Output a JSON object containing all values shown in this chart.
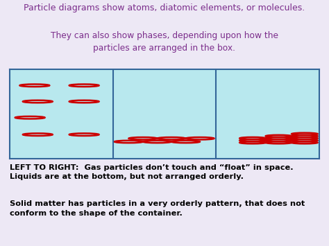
{
  "title_line1": "Particle diagrams show atoms, diatomic elements, or molecules.",
  "title_line2": "They can also show phases, depending upon how the\nparticles are arranged in the box.",
  "title_color": "#7b2d8b",
  "bg_color": "#ede8f5",
  "box_bg_color": "#b8e8ee",
  "box_border_color": "#336699",
  "circle_edge_color": "#cc0000",
  "circle_lw": 1.8,
  "bottom_bg_color": "#ddd8ef",
  "bottom_text1": "LEFT TO RIGHT:  Gas particles don’t touch and “float” in space.\nLiquids are at the bottom, but not arranged orderly.",
  "bottom_text2": "Solid matter has particles in a very orderly pattern, that does not\nconform to the shape of the container.",
  "bottom_text_color": "#000000"
}
